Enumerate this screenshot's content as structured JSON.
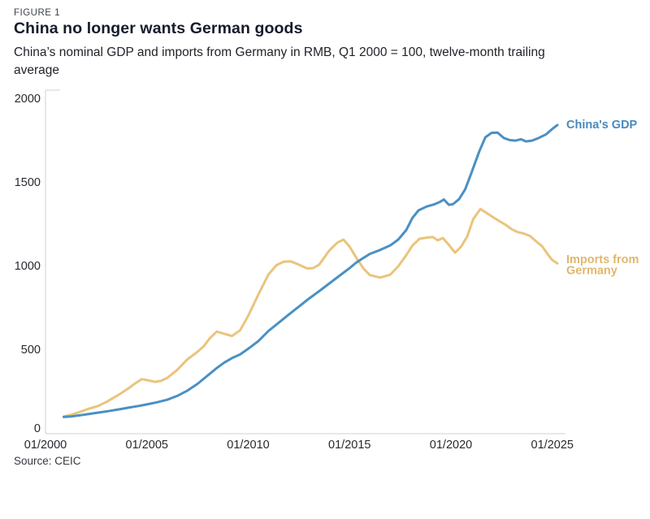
{
  "header": {
    "figure_label": "FIGURE 1",
    "title": "China no longer wants German goods",
    "subtitle": "China’s nominal GDP and imports from Germany in RMB, Q1 2000 = 100, twelve-month trailing average"
  },
  "footer": {
    "source": "Source: CEIC"
  },
  "colors": {
    "gdp_line": "#4a90c4",
    "gdp_label": "#4689bd",
    "imports_line": "#eac47c",
    "imports_label": "#e2b76c",
    "axis": "#cdd0d3",
    "tick_text": "#26292e",
    "title_text": "#161b2c",
    "background": "#ffffff"
  },
  "chart_data": {
    "type": "line",
    "title": "China no longer wants German goods",
    "subtitle": "China’s nominal GDP and imports from Germany in RMB, Q1 2000 = 100, twelve-month trailing average",
    "source": "Source: CEIC",
    "grid": false,
    "legend_position": "end-of-line labels, right side",
    "x_axis": {
      "range_years": [
        2000,
        2025.6
      ],
      "ticks": [
        {
          "t": 2000,
          "label": "01/2000"
        },
        {
          "t": 2005,
          "label": "01/2005"
        },
        {
          "t": 2010,
          "label": "01/2010"
        },
        {
          "t": 2015,
          "label": "01/2015"
        },
        {
          "t": 2020,
          "label": "01/2020"
        },
        {
          "t": 2025,
          "label": "01/2025"
        }
      ]
    },
    "y_axis": {
      "range": [
        0,
        2000
      ],
      "ticks": [
        {
          "v": 0,
          "label": "0"
        },
        {
          "v": 500,
          "label": "500"
        },
        {
          "v": 1000,
          "label": "1000"
        },
        {
          "v": 1500,
          "label": "1500"
        },
        {
          "v": 2000,
          "label": "2000"
        }
      ]
    },
    "series": [
      {
        "name": "Imports from Germany",
        "color": "#eac47c",
        "label_color": "#e2b76c",
        "annotation_lines": [
          "Imports from",
          "Germany"
        ],
        "points": [
          [
            2000.9,
            103
          ],
          [
            2001.3,
            114
          ],
          [
            2001.7,
            130
          ],
          [
            2002.1,
            148
          ],
          [
            2002.6,
            166
          ],
          [
            2003.1,
            196
          ],
          [
            2003.6,
            232
          ],
          [
            2004.1,
            272
          ],
          [
            2004.45,
            303
          ],
          [
            2004.75,
            326
          ],
          [
            2005.1,
            318
          ],
          [
            2005.4,
            310
          ],
          [
            2005.7,
            316
          ],
          [
            2006.0,
            333
          ],
          [
            2006.5,
            382
          ],
          [
            2007.0,
            445
          ],
          [
            2007.4,
            480
          ],
          [
            2007.8,
            522
          ],
          [
            2008.1,
            570
          ],
          [
            2008.45,
            610
          ],
          [
            2008.8,
            598
          ],
          [
            2009.2,
            584
          ],
          [
            2009.6,
            618
          ],
          [
            2010.0,
            705
          ],
          [
            2010.5,
            832
          ],
          [
            2011.0,
            952
          ],
          [
            2011.4,
            1008
          ],
          [
            2011.75,
            1028
          ],
          [
            2012.1,
            1030
          ],
          [
            2012.5,
            1010
          ],
          [
            2012.9,
            988
          ],
          [
            2013.2,
            990
          ],
          [
            2013.5,
            1010
          ],
          [
            2014.0,
            1095
          ],
          [
            2014.4,
            1142
          ],
          [
            2014.7,
            1160
          ],
          [
            2015.0,
            1118
          ],
          [
            2015.35,
            1048
          ],
          [
            2015.7,
            985
          ],
          [
            2016.0,
            948
          ],
          [
            2016.5,
            933
          ],
          [
            2017.0,
            950
          ],
          [
            2017.4,
            1000
          ],
          [
            2017.8,
            1068
          ],
          [
            2018.1,
            1125
          ],
          [
            2018.45,
            1165
          ],
          [
            2018.8,
            1172
          ],
          [
            2019.1,
            1176
          ],
          [
            2019.35,
            1156
          ],
          [
            2019.6,
            1170
          ],
          [
            2019.9,
            1128
          ],
          [
            2020.2,
            1082
          ],
          [
            2020.5,
            1118
          ],
          [
            2020.8,
            1178
          ],
          [
            2021.1,
            1282
          ],
          [
            2021.45,
            1343
          ],
          [
            2021.8,
            1316
          ],
          [
            2022.1,
            1292
          ],
          [
            2022.4,
            1270
          ],
          [
            2022.7,
            1248
          ],
          [
            2023.0,
            1222
          ],
          [
            2023.3,
            1205
          ],
          [
            2023.6,
            1196
          ],
          [
            2023.9,
            1182
          ],
          [
            2024.2,
            1150
          ],
          [
            2024.5,
            1120
          ],
          [
            2024.8,
            1068
          ],
          [
            2025.0,
            1038
          ],
          [
            2025.25,
            1018
          ]
        ]
      },
      {
        "name": "China's GDP",
        "color": "#4a90c4",
        "label_color": "#4689bd",
        "annotation_lines": [
          "China's GDP"
        ],
        "points": [
          [
            2000.9,
            100
          ],
          [
            2001.3,
            104
          ],
          [
            2001.7,
            110
          ],
          [
            2002.1,
            117
          ],
          [
            2002.6,
            126
          ],
          [
            2003.1,
            135
          ],
          [
            2003.6,
            145
          ],
          [
            2004.1,
            156
          ],
          [
            2004.6,
            166
          ],
          [
            2005.0,
            175
          ],
          [
            2005.5,
            188
          ],
          [
            2006.0,
            203
          ],
          [
            2006.5,
            226
          ],
          [
            2007.0,
            258
          ],
          [
            2007.5,
            298
          ],
          [
            2008.0,
            348
          ],
          [
            2008.4,
            388
          ],
          [
            2008.8,
            424
          ],
          [
            2009.2,
            452
          ],
          [
            2009.6,
            474
          ],
          [
            2010.0,
            508
          ],
          [
            2010.5,
            554
          ],
          [
            2011.0,
            614
          ],
          [
            2011.5,
            663
          ],
          [
            2012.0,
            712
          ],
          [
            2012.5,
            760
          ],
          [
            2013.0,
            808
          ],
          [
            2013.5,
            852
          ],
          [
            2014.0,
            898
          ],
          [
            2014.5,
            944
          ],
          [
            2015.0,
            990
          ],
          [
            2015.3,
            1020
          ],
          [
            2015.7,
            1052
          ],
          [
            2016.0,
            1075
          ],
          [
            2016.5,
            1098
          ],
          [
            2017.0,
            1125
          ],
          [
            2017.4,
            1160
          ],
          [
            2017.8,
            1218
          ],
          [
            2018.1,
            1290
          ],
          [
            2018.4,
            1335
          ],
          [
            2018.8,
            1358
          ],
          [
            2019.2,
            1372
          ],
          [
            2019.45,
            1385
          ],
          [
            2019.65,
            1400
          ],
          [
            2019.9,
            1368
          ],
          [
            2020.1,
            1372
          ],
          [
            2020.4,
            1402
          ],
          [
            2020.7,
            1460
          ],
          [
            2021.0,
            1555
          ],
          [
            2021.4,
            1688
          ],
          [
            2021.7,
            1772
          ],
          [
            2022.0,
            1798
          ],
          [
            2022.3,
            1800
          ],
          [
            2022.6,
            1768
          ],
          [
            2022.9,
            1755
          ],
          [
            2023.2,
            1752
          ],
          [
            2023.45,
            1760
          ],
          [
            2023.7,
            1747
          ],
          [
            2024.0,
            1752
          ],
          [
            2024.3,
            1766
          ],
          [
            2024.7,
            1790
          ],
          [
            2025.0,
            1822
          ],
          [
            2025.25,
            1845
          ]
        ]
      }
    ]
  }
}
